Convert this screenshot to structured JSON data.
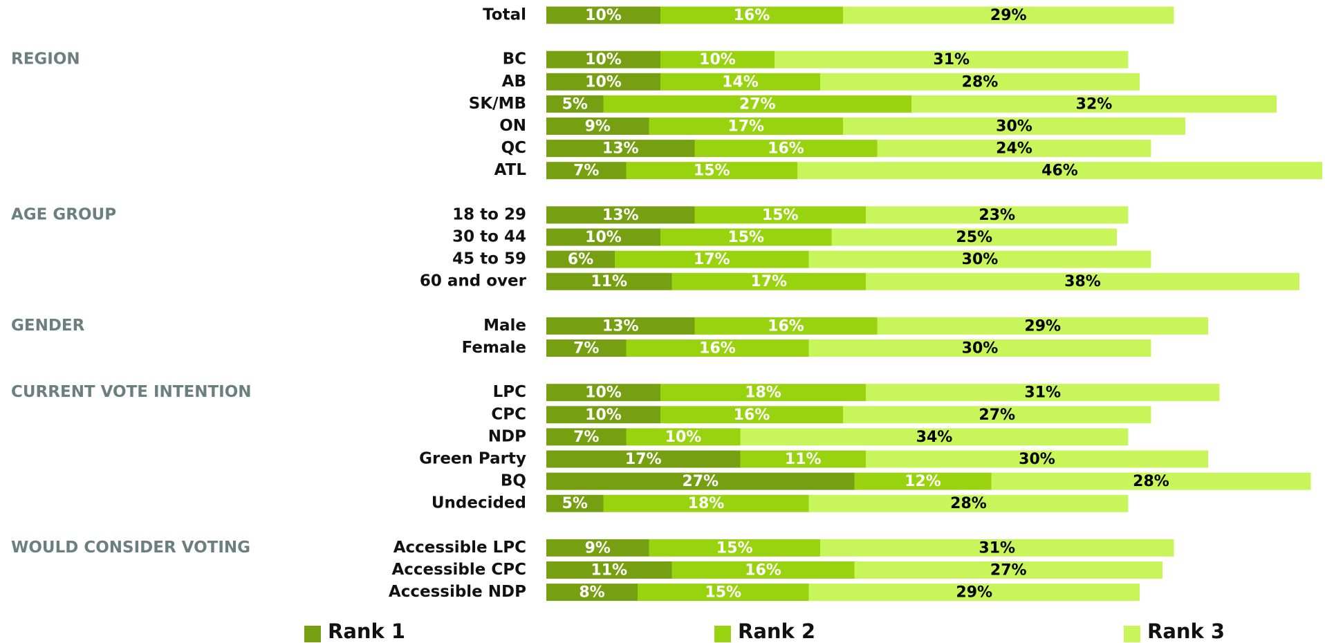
{
  "chart_data": {
    "type": "stacked-barh",
    "categories": [
      "Total",
      "BC",
      "AB",
      "SK/MB",
      "ON",
      "QC",
      "ATL",
      "18 to 29",
      "30 to 44",
      "45 to 59",
      "60 and over",
      "Male",
      "Female",
      "LPC",
      "CPC",
      "NDP",
      "Green Party",
      "BQ",
      "Undecided",
      "Accessible LPC",
      "Accessible CPC",
      "Accessible NDP"
    ],
    "category_groups": [
      null,
      "REGION",
      "REGION",
      "REGION",
      "REGION",
      "REGION",
      "REGION",
      "AGE GROUP",
      "AGE GROUP",
      "AGE GROUP",
      "AGE GROUP",
      "GENDER",
      "GENDER",
      "CURRENT VOTE INTENTION",
      "CURRENT VOTE INTENTION",
      "CURRENT VOTE INTENTION",
      "CURRENT VOTE INTENTION",
      "CURRENT VOTE INTENTION",
      "CURRENT VOTE INTENTION",
      "WOULD CONSIDER VOTING",
      "WOULD CONSIDER VOTING",
      "WOULD CONSIDER VOTING"
    ],
    "series": [
      {
        "name": "Rank 1",
        "color": "#76a012",
        "label_color": "#ffffff",
        "values": [
          10,
          10,
          10,
          5,
          9,
          13,
          7,
          13,
          10,
          6,
          11,
          13,
          7,
          10,
          10,
          7,
          17,
          27,
          5,
          9,
          11,
          8
        ],
        "value_labels": [
          "10%",
          "10%",
          "10%",
          "5%",
          "9%",
          "13%",
          "7%",
          "13%",
          "10%",
          "6%",
          "11%",
          "13%",
          "7%",
          "10%",
          "10%",
          "7%",
          "17%",
          "27%",
          "5%",
          "9%",
          "11%",
          "8%"
        ]
      },
      {
        "name": "Rank 2",
        "color": "#99d30f",
        "label_color": "#ffffff",
        "values": [
          16,
          10,
          14,
          27,
          17,
          16,
          15,
          15,
          15,
          17,
          17,
          16,
          16,
          18,
          16,
          10,
          11,
          12,
          18,
          15,
          16,
          15
        ],
        "value_labels": [
          "16%",
          "10%",
          "14%",
          "27%",
          "17%",
          "16%",
          "15%",
          "15%",
          "15%",
          "17%",
          "17%",
          "16%",
          "16%",
          "18%",
          "16%",
          "10%",
          "11%",
          "12%",
          "18%",
          "15%",
          "16%",
          "15%"
        ]
      },
      {
        "name": "Rank 3",
        "color": "#c8f55a",
        "label_color": "#000000",
        "values": [
          29,
          31,
          28,
          32,
          30,
          24,
          46,
          23,
          25,
          30,
          38,
          29,
          30,
          31,
          27,
          34,
          30,
          28,
          28,
          31,
          27,
          29
        ],
        "value_labels": [
          "29%",
          "31%",
          "28%",
          "32%",
          "30%",
          "24%",
          "46%",
          "23%",
          "25%",
          "30%",
          "38%",
          "29%",
          "30%",
          "31%",
          "27%",
          "34%",
          "30%",
          "28%",
          "28%",
          "31%",
          "27%",
          "29%"
        ]
      }
    ]
  }
}
